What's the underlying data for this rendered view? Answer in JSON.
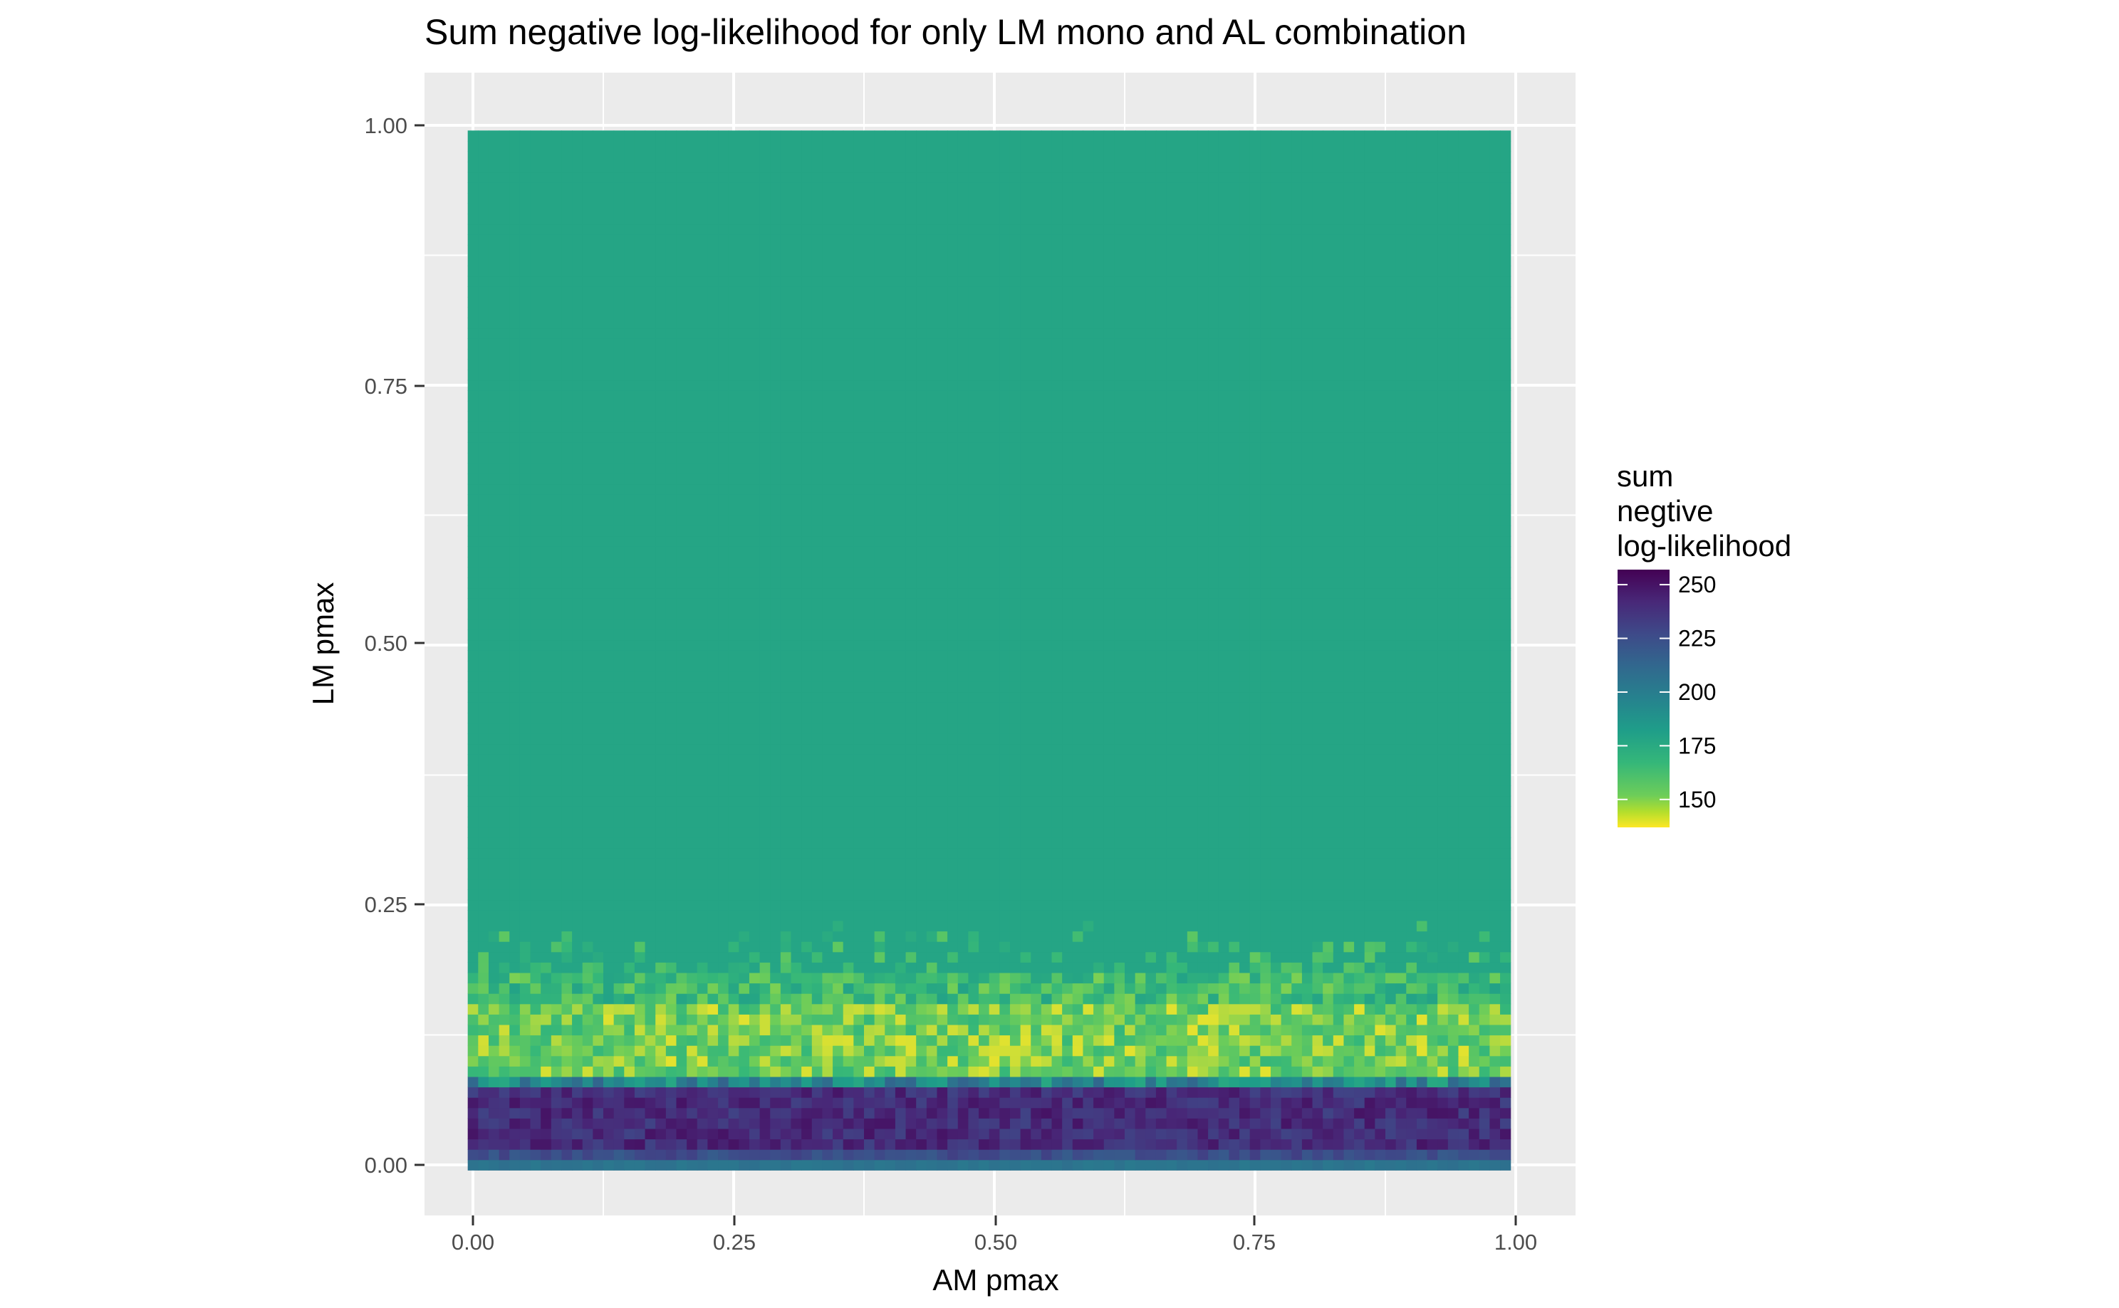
{
  "chart_data": {
    "type": "heatmap",
    "title": "Sum negative log-likelihood for only LM mono and AL combination",
    "xlabel": "AM pmax",
    "ylabel": "LM pmax",
    "xlim": [
      0,
      1
    ],
    "ylim": [
      0,
      1
    ],
    "x_ticks": [
      "0.00",
      "0.25",
      "0.50",
      "0.75",
      "1.00"
    ],
    "y_ticks": [
      "0.00",
      "0.25",
      "0.50",
      "0.75",
      "1.00"
    ],
    "grid": true,
    "grid_step": 0.01,
    "legend": {
      "title_lines": [
        "sum",
        "negtive",
        "log-likelihood"
      ],
      "placement": "right",
      "breaks": [
        250,
        225,
        200,
        175,
        150
      ],
      "range": [
        137,
        257
      ],
      "colormap": "viridis-reversed"
    },
    "value_summary": {
      "plateau_value": 178,
      "plateau_region_lm_pmax": [
        0.2,
        1.0
      ],
      "dark_band_lm_pmax": [
        0.02,
        0.07
      ],
      "dark_band_value": 250,
      "bright_band_lm_pmax": [
        0.08,
        0.15
      ],
      "bright_band_value": 148,
      "bottom_row_value": 205
    },
    "colors": {
      "panel_background": "#EBEBEB",
      "grid_major": "#FFFFFF",
      "plateau": "#21918C",
      "low": "#FDE725",
      "high": "#440154"
    }
  }
}
